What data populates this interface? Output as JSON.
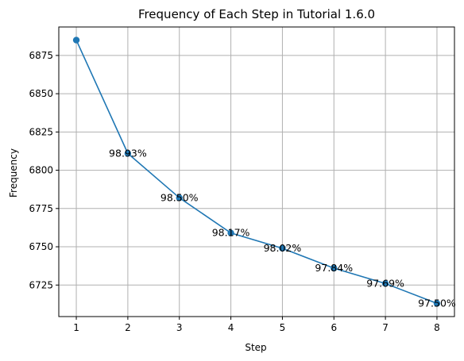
{
  "chart_data": {
    "type": "line",
    "title": "Frequency of Each Step in Tutorial 1.6.0",
    "xlabel": "Step",
    "ylabel": "Frequency",
    "x": [
      1,
      2,
      3,
      4,
      5,
      6,
      7,
      8
    ],
    "values": [
      6885,
      6811,
      6782,
      6759,
      6749,
      6736,
      6726,
      6713
    ],
    "point_labels": [
      "",
      "98.93%",
      "98.50%",
      "98.17%",
      "98.02%",
      "97.84%",
      "97.69%",
      "97.50%"
    ],
    "xticks": [
      "1",
      "2",
      "3",
      "4",
      "5",
      "6",
      "7",
      "8"
    ],
    "yticks": [
      6725,
      6750,
      6775,
      6800,
      6825,
      6850,
      6875
    ],
    "xlim": [
      0.66,
      8.34
    ],
    "ylim": [
      6704.4,
      6893.6
    ],
    "grid": true,
    "line_color": "#1f77b4",
    "marker": "circle"
  }
}
